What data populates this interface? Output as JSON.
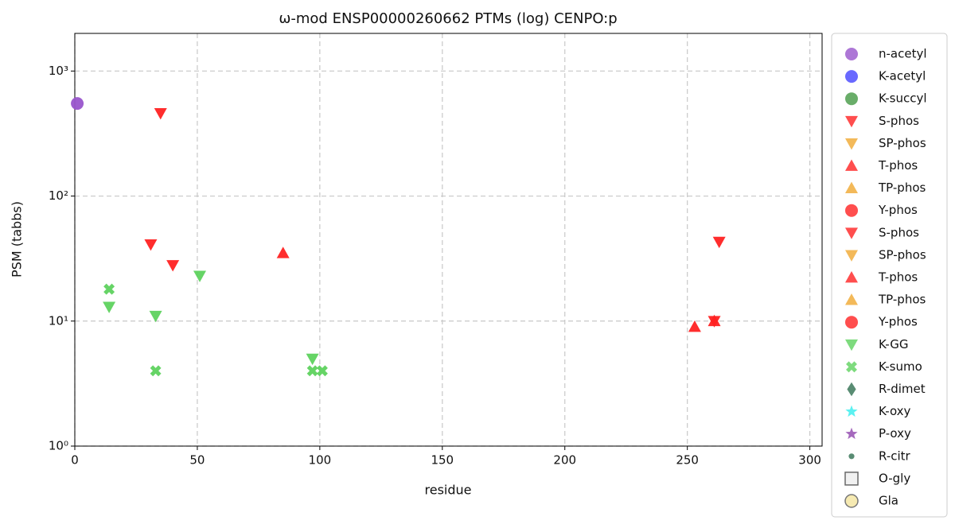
{
  "chart_data": {
    "type": "scatter",
    "title": "ω-mod ENSP00000260662 PTMs (log) CENPO:p",
    "x_label": "residue",
    "y_label": "PSM (tabbs)",
    "log_y": true,
    "grid": true,
    "legend": "outside right",
    "xlim": [
      0,
      305
    ],
    "ylim": [
      1,
      2000
    ],
    "xticks": [
      0,
      50,
      100,
      150,
      200,
      250,
      300
    ],
    "yticks": [
      {
        "value": 1,
        "label": "10⁰"
      },
      {
        "value": 10,
        "label": "10¹"
      },
      {
        "value": 100,
        "label": "10²"
      },
      {
        "value": 1000,
        "label": "10³"
      }
    ],
    "series": [
      {
        "name": "n-acetyl",
        "color": "#9955cc",
        "marker": "circle",
        "x": [
          1
        ],
        "values": [
          550
        ]
      },
      {
        "name": "K-acetyl",
        "color": "#4444ff",
        "marker": "circle",
        "x": [],
        "values": []
      },
      {
        "name": "K-succyl",
        "color": "#449944",
        "marker": "circle",
        "x": [],
        "values": []
      },
      {
        "name": "S-phos",
        "color": "#ff2222",
        "marker": "down",
        "x": [
          35,
          31,
          40,
          263,
          261
        ],
        "values": [
          460,
          41,
          28,
          43,
          10
        ]
      },
      {
        "name": "SP-phos",
        "color": "#f0a830",
        "marker": "down",
        "x": [],
        "values": []
      },
      {
        "name": "T-phos",
        "color": "#ff2222",
        "marker": "up",
        "x": [
          85,
          253,
          261
        ],
        "values": [
          35,
          9,
          10
        ]
      },
      {
        "name": "TP-phos",
        "color": "#f0a830",
        "marker": "up",
        "x": [],
        "values": []
      },
      {
        "name": "Y-phos",
        "color": "#ff2222",
        "marker": "circle",
        "x": [],
        "values": []
      },
      {
        "name": "S-phos",
        "color": "#ff2222",
        "marker": "down",
        "x": [],
        "values": []
      },
      {
        "name": "SP-phos",
        "color": "#f0a830",
        "marker": "down",
        "x": [],
        "values": []
      },
      {
        "name": "T-phos",
        "color": "#ff2222",
        "marker": "up",
        "x": [],
        "values": []
      },
      {
        "name": "TP-phos",
        "color": "#f0a830",
        "marker": "up",
        "x": [],
        "values": []
      },
      {
        "name": "Y-phos",
        "color": "#ff2222",
        "marker": "circle",
        "x": [],
        "values": []
      },
      {
        "name": "K-GG",
        "color": "#5ed25e",
        "marker": "down",
        "x": [
          14,
          33,
          51,
          97
        ],
        "values": [
          13,
          11,
          23,
          5
        ]
      },
      {
        "name": "K-sumo",
        "color": "#5ed25e",
        "marker": "x",
        "x": [
          14,
          33,
          97,
          101
        ],
        "values": [
          18,
          4,
          4,
          4
        ]
      },
      {
        "name": "R-dimet",
        "color": "#2f6f50",
        "marker": "diamond",
        "x": [],
        "values": []
      },
      {
        "name": "K-oxy",
        "color": "#33eeee",
        "marker": "star",
        "x": [],
        "values": []
      },
      {
        "name": "P-oxy",
        "color": "#8e44ad",
        "marker": "star",
        "x": [],
        "values": []
      },
      {
        "name": "R-citr",
        "color": "#2f6f50",
        "marker": "dot",
        "x": [],
        "values": []
      },
      {
        "name": "O-gly",
        "color": "#eeeeee",
        "marker": "square",
        "x": [],
        "values": []
      },
      {
        "name": "Gla",
        "color": "#f5e6a0",
        "marker": "ring",
        "x": [],
        "values": []
      }
    ]
  }
}
